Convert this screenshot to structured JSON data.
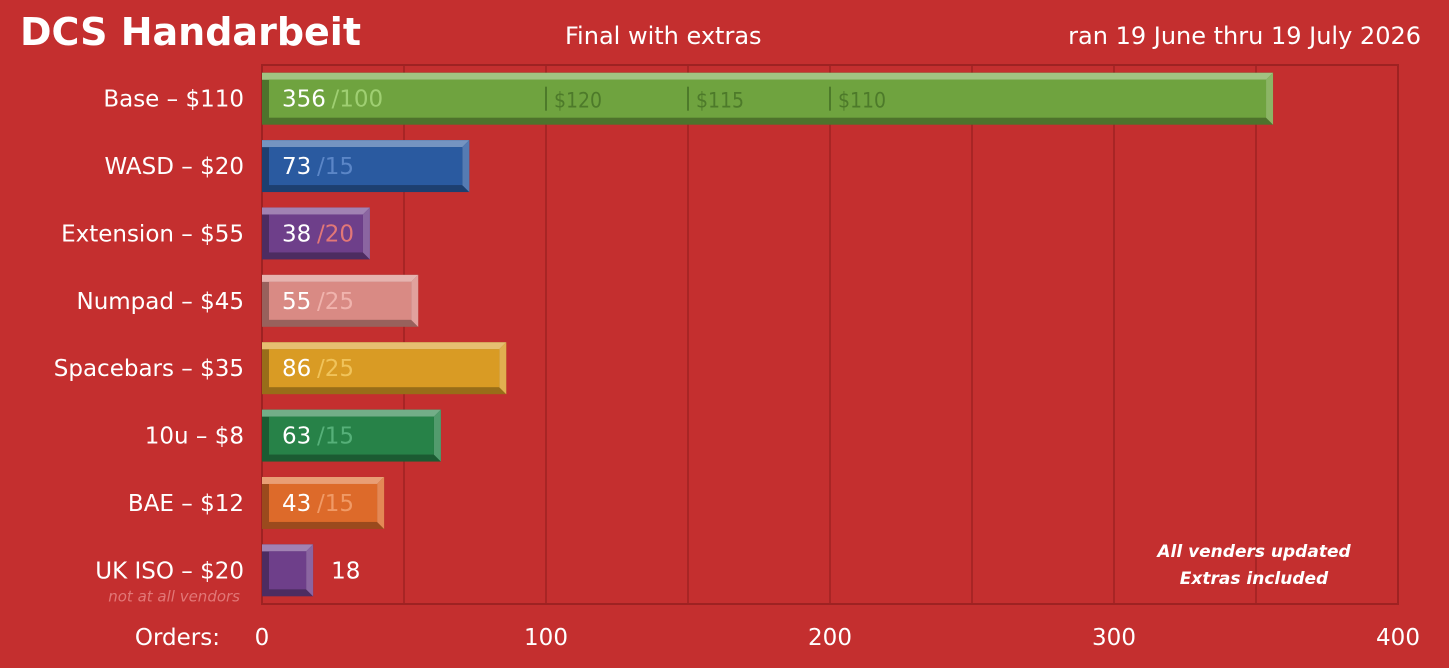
{
  "header": {
    "title": "DCS Handarbeit",
    "subtitle": "Final with extras",
    "date_range": "ran 19 June thru 19 July 2026"
  },
  "chart_data": {
    "type": "bar",
    "orientation": "horizontal",
    "title": "DCS Handarbeit",
    "subtitle": "Final with extras",
    "xlabel": "Orders:",
    "xlim": [
      0,
      400
    ],
    "x_ticks": [
      0,
      100,
      200,
      300,
      400
    ],
    "categories": [
      "Base – $110",
      "WASD – $20",
      "Extension – $55",
      "Numpad – $45",
      "Spacebars – $35",
      "10u – $8",
      "BAE – $12",
      "UK ISO – $20"
    ],
    "category_notes": [
      "",
      "",
      "",
      "",
      "",
      "",
      "",
      "not at all vendors"
    ],
    "values": [
      356,
      73,
      38,
      55,
      86,
      63,
      43,
      18
    ],
    "targets": [
      "/100",
      "/15",
      "/20",
      "/25",
      "/25",
      "/15",
      "/15",
      ""
    ],
    "colors": [
      "#6fa33f",
      "#2a5aa0",
      "#6e3f8a",
      "#d98a84",
      "#d99b24",
      "#278248",
      "#dd6a2a",
      "#6e3f8a"
    ],
    "target_colors": [
      "#9fcf72",
      "#5b86c7",
      "#e27777",
      "#f0b3ad",
      "#f0c35a",
      "#56b079",
      "#f09a66",
      "#ffffff"
    ],
    "price_markers": [
      {
        "value": 100,
        "label": "$120"
      },
      {
        "value": 150,
        "label": "$115"
      },
      {
        "value": 200,
        "label": "$110"
      }
    ],
    "annotations": [
      "All venders updated",
      "Extras included"
    ],
    "grid": true
  }
}
